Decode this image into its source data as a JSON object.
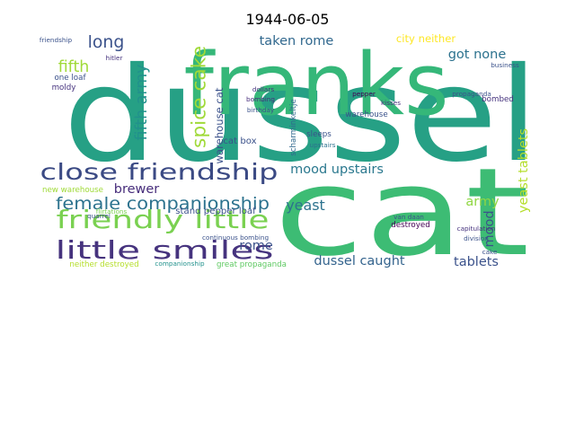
{
  "chart_data": {
    "type": "wordcloud",
    "title": "1944-06-05",
    "words": [
      "dussel",
      "cat",
      "franks",
      "close friendship",
      "friendly little",
      "little smiles",
      "female companionship",
      "spice cake",
      "fifth army",
      "fifth",
      "long",
      "taken rome",
      "city neither",
      "got none",
      "army",
      "yeast tablets",
      "mood upstairs",
      "mood",
      "yeast",
      "dussel caught",
      "tablets",
      "rome",
      "brewer",
      "warehouse cat",
      "cat box",
      "stand pepper loaf",
      "great propaganda",
      "neither destroyed",
      "new warehouse",
      "one loaf",
      "moldy",
      "bombed",
      "destroyed",
      "warehouse",
      "scharminkeltje",
      "sleeps",
      "upstairs",
      "friendship",
      "hitler",
      "quarrel",
      "flirtations",
      "continuous bombing",
      "dollars",
      "bombing",
      "birthday",
      "pepper",
      "kisses",
      "propaganda",
      "business",
      "van daan",
      "capitulation",
      "division",
      "cake",
      "companionship"
    ],
    "values": [
      100,
      93,
      66,
      17,
      19,
      19,
      13,
      15,
      12,
      12,
      13,
      10,
      8,
      10,
      10,
      10,
      10,
      10,
      11,
      10,
      10,
      10,
      10,
      8,
      7,
      7,
      6,
      6,
      6,
      6,
      6,
      6,
      6,
      6,
      6,
      6,
      5,
      5,
      5,
      5,
      5,
      5,
      5,
      5,
      5,
      5,
      5,
      5,
      5,
      5,
      5,
      5,
      5,
      5
    ],
    "colors": [
      "#26a085",
      "#3dbc74",
      "#35b779",
      "#3b4a84",
      "#7ad151",
      "#46337e",
      "#2c728e",
      "#a0da39",
      "#21918c",
      "#a0da39",
      "#3b528b",
      "#31688e",
      "#fde725",
      "#2c728e",
      "#90d743",
      "#b5de2b",
      "#2a788e",
      "#3b528b",
      "#2c728e",
      "#33638d",
      "#3b528b",
      "#3b528b",
      "#472d7b",
      "#3b528b",
      "#3b528b",
      "#3b528b",
      "#5ec962",
      "#b5de2b",
      "#a0da39",
      "#3b528b",
      "#46337e",
      "#46337e",
      "#440154",
      "#3b528b",
      "#31688e",
      "#3b528b",
      "#2c728e",
      "#3b528b",
      "#46337e",
      "#3b528b",
      "#7ad151",
      "#3b528b",
      "#46337e",
      "#472d7b",
      "#3b528b",
      "#440154",
      "#46337e",
      "#3b528b",
      "#3b528b",
      "#3b528b",
      "#46337e",
      "#3b528b",
      "#3b528b",
      "#21918c"
    ]
  }
}
